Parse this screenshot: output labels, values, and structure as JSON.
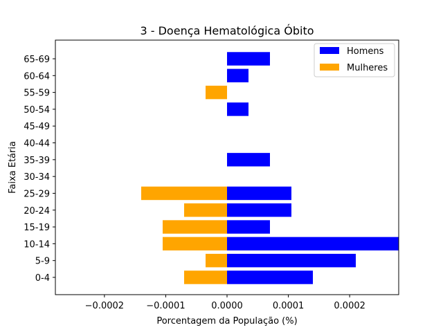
{
  "chart_data": {
    "type": "bar",
    "orientation": "horizontal",
    "title": "3 - Doença Hematológica Óbito",
    "xlabel": "Porcentagem da População (%)",
    "ylabel": "Faixa Etária",
    "categories": [
      "0-4",
      "5-9",
      "10-14",
      "15-19",
      "20-24",
      "25-29",
      "30-34",
      "35-39",
      "40-44",
      "45-49",
      "50-54",
      "55-59",
      "60-64",
      "65-69"
    ],
    "series": [
      {
        "name": "Homens",
        "color": "#0000ff",
        "values": [
          0.00014,
          0.00021,
          0.00028,
          7e-05,
          0.000105,
          0.000105,
          0,
          7e-05,
          0,
          0,
          3.5e-05,
          0,
          3.5e-05,
          7e-05
        ]
      },
      {
        "name": "Mulheres",
        "color": "#ffa500",
        "values": [
          -7e-05,
          -3.5e-05,
          -0.000105,
          -0.000105,
          -7e-05,
          -0.00014,
          0,
          0,
          0,
          0,
          0,
          -3.5e-05,
          0,
          0
        ]
      }
    ],
    "xlim": [
      -0.00028,
      0.00028
    ],
    "xticks": [
      -0.0002,
      -0.0001,
      0.0,
      0.0001,
      0.0002
    ],
    "xtick_labels": [
      "−0.0002",
      "−0.0001",
      "0.0000",
      "0.0001",
      "0.0002"
    ],
    "legend_position": "top-right",
    "grid": false
  }
}
